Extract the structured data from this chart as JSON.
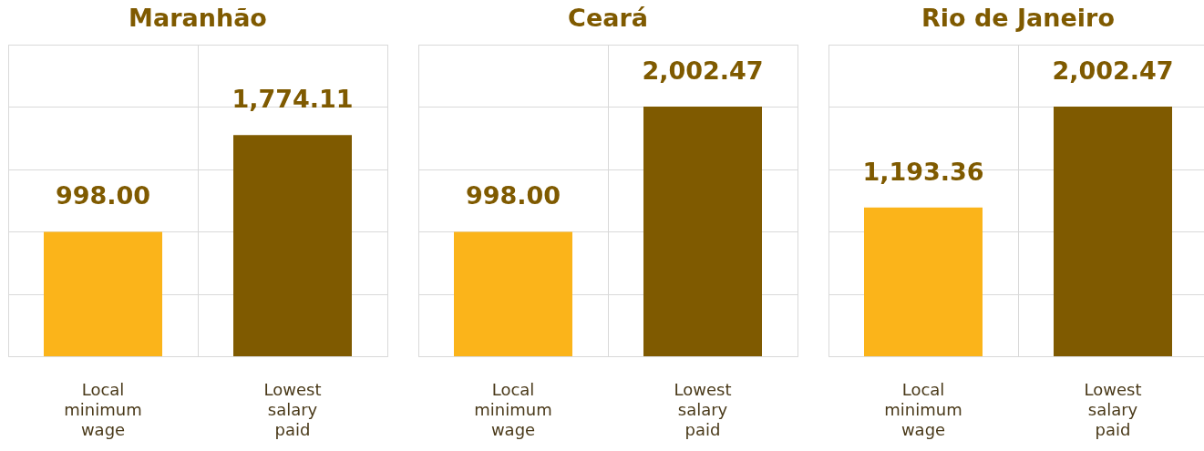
{
  "chart_data": [
    {
      "type": "bar",
      "title": "Maranhão",
      "categories": [
        "Local minimum wage",
        "Lowest salary paid"
      ],
      "values": [
        998.0,
        1774.11
      ],
      "colors": [
        "#fbb41a",
        "#7f5a00"
      ],
      "value_labels": [
        "998.00",
        "1,774.11"
      ],
      "ylim": [
        0,
        2500
      ],
      "yticks": [
        {
          "value": 0,
          "label": null
        },
        {
          "value": 500,
          "label": null
        },
        {
          "value": 1000,
          "label": null
        },
        {
          "value": 1500,
          "label": null
        },
        {
          "value": 2000,
          "label": null
        },
        {
          "value": 2500,
          "label": null
        }
      ],
      "grid": true,
      "tick_labels": "x"
    },
    {
      "type": "bar",
      "title": "Ceará",
      "categories": [
        "Local minimum wage",
        "Lowest salary paid"
      ],
      "values": [
        998.0,
        2002.47
      ],
      "colors": [
        "#fbb41a",
        "#7f5a00"
      ],
      "value_labels": [
        "998.00",
        "2,002.47"
      ],
      "ylim": [
        0,
        2500
      ],
      "yticks": [
        {
          "value": 0,
          "label": null
        },
        {
          "value": 500,
          "label": null
        },
        {
          "value": 1000,
          "label": null
        },
        {
          "value": 1500,
          "label": null
        },
        {
          "value": 2000,
          "label": null
        },
        {
          "value": 2500,
          "label": null
        }
      ],
      "grid": true,
      "tick_labels": "x"
    },
    {
      "type": "bar",
      "title": "Rio de Janeiro",
      "categories": [
        "Local minimum wage",
        "Lowest salary paid"
      ],
      "values": [
        1193.36,
        2002.47
      ],
      "colors": [
        "#fbb41a",
        "#7f5a00"
      ],
      "value_labels": [
        "1,193.36",
        "2,002.47"
      ],
      "ylim": [
        0,
        2500
      ],
      "yticks": [
        {
          "value": 0,
          "label": null
        },
        {
          "value": 500,
          "label": null
        },
        {
          "value": 1000,
          "label": null
        },
        {
          "value": 1500,
          "label": null
        },
        {
          "value": 2000,
          "label": null
        },
        {
          "value": 2500,
          "label": null
        }
      ],
      "grid": true,
      "tick_labels": "x"
    }
  ]
}
